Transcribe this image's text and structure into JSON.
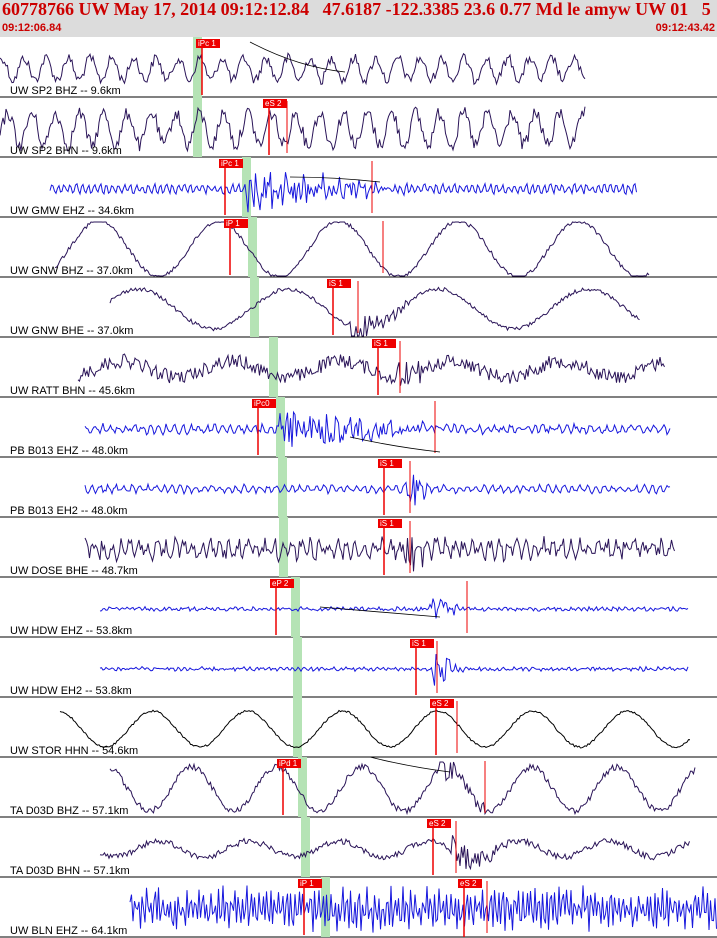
{
  "header": {
    "title": "60778766 UW May 17, 2014 09:12:12.84   47.6187 -122.3385 23.6 0.77 Md le amyw UW 01   5",
    "time_start": "09:12:06.84",
    "time_end": "09:12:43.42"
  },
  "colors": {
    "header_bg": "#dcdcdc",
    "header_text": "#cc0000",
    "pick": "#ee0000",
    "highlight": "#b5e3b5",
    "trace_broadband": "#2a1458",
    "trace_short_period": "#1818dd"
  },
  "channels": [
    {
      "label": "UW SP2 BHZ -- 9.6km",
      "color": "#2a1458",
      "pick": "iPc 1"
    },
    {
      "label": "UW SP2 BHN -- 9.6km",
      "color": "#2a1458",
      "pick": "eS 2"
    },
    {
      "label": "UW GMW EHZ -- 34.6km",
      "color": "#1818dd",
      "pick": "iPc 1"
    },
    {
      "label": "UW GNW BHZ -- 37.0km",
      "color": "#2a1458",
      "pick": "iP 1"
    },
    {
      "label": "UW GNW BHE -- 37.0km",
      "color": "#2a1458",
      "pick": "iS 1"
    },
    {
      "label": "UW RATT BHN -- 45.6km",
      "color": "#2a1458",
      "pick": "iS 1"
    },
    {
      "label": "PB B013 EHZ -- 48.0km",
      "color": "#1818dd",
      "pick": "iPc0"
    },
    {
      "label": "PB B013 EH2 -- 48.0km",
      "color": "#1818dd",
      "pick": "iS 1"
    },
    {
      "label": "UW DOSE BHE -- 48.7km",
      "color": "#2a1458",
      "pick": "iS 1"
    },
    {
      "label": "UW HDW EHZ -- 53.8km",
      "color": "#1818dd",
      "pick": "eP 2"
    },
    {
      "label": "UW HDW EH2 -- 53.8km",
      "color": "#1818dd",
      "pick": "iS 1"
    },
    {
      "label": "UW STOR HHN -- 54.6km",
      "color": "#000000",
      "pick": "eS 2"
    },
    {
      "label": "TA D03D BHZ -- 57.1km",
      "color": "#2a1458",
      "pick": "iPd 1"
    },
    {
      "label": "TA D03D BHN -- 57.1km",
      "color": "#2a1458",
      "pick": "eS 2"
    },
    {
      "label": "UW BLN EHZ -- 64.1km",
      "color": "#1818dd",
      "pick": "iP 1"
    }
  ],
  "extra_picks": [
    {
      "channel": 14,
      "label": "eS 2"
    }
  ]
}
